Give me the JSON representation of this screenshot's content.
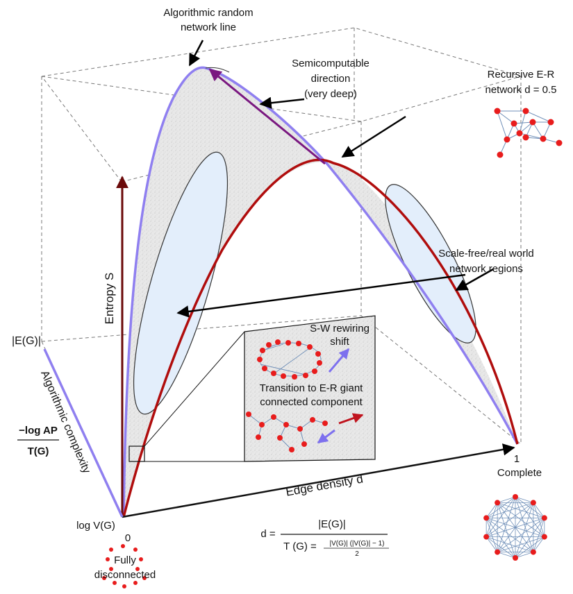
{
  "labels": {
    "algorithmic_random_line": [
      "Algorithmic random",
      "network line"
    ],
    "semicomputable": [
      "Semicomputable",
      "direction",
      "(very deep)"
    ],
    "recursive_er": [
      "Recursive E-R",
      "network d = 0.5"
    ],
    "scale_free": [
      "Scale-free/real world",
      "network regions"
    ],
    "sw_rewiring": [
      "S-W rewiring",
      "shift"
    ],
    "transition_er": [
      "Transition to E-R giant",
      "connected component"
    ],
    "entropy_axis": "Entropy S",
    "edge_density_axis": "Edge density d",
    "algorithmic_complexity_axis": "Algorithmic complexity",
    "eg_label": "|E(G)|",
    "log_vg": "log V(G)",
    "zero": "0",
    "one": "1",
    "complete": "Complete",
    "fully": "Fully",
    "disconnected": "disconnected",
    "neg_log_ap": "−log AP",
    "tg": "T(G)",
    "formula_d": "d =",
    "formula_num": "|E(G)|",
    "formula_tg": "T (G) =",
    "formula_tg_num": "|V(G)| (|V(G)| − 1)",
    "formula_tg_den": "2"
  },
  "colors": {
    "blue_curve": "#8f7ff0",
    "red_curve": "#b00d0d",
    "dark_red_axis": "#6b0a0a",
    "surface": "#e6e6e6",
    "ellipse_fill": "#e3eefb",
    "node_red": "#e81c1c",
    "edge_blue": "#6f8fb8",
    "purple_arrow": "#7a1880"
  },
  "icons": {
    "complete_graph": "complete-graph-icon",
    "er_network": "er-network-icon",
    "disconnected": "disconnected-nodes-icon"
  }
}
